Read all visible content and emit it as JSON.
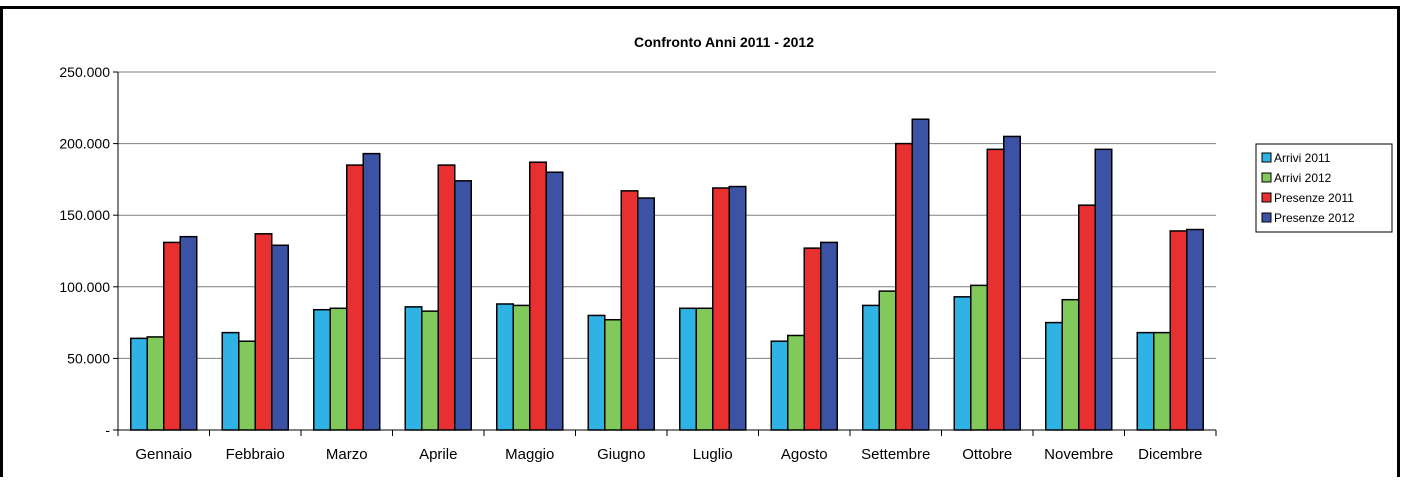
{
  "chart_data": {
    "type": "bar",
    "title": "Confronto Anni 2011 - 2012",
    "xlabel": "",
    "ylabel": "",
    "ylim": [
      0,
      250000
    ],
    "yticks": [
      0,
      50000,
      100000,
      150000,
      200000,
      250000
    ],
    "ytick_labels": [
      "-",
      "50.000",
      "100.000",
      "150.000",
      "200.000",
      "250.000"
    ],
    "grid": true,
    "legend_position": "right",
    "categories": [
      "Gennaio",
      "Febbraio",
      "Marzo",
      "Aprile",
      "Maggio",
      "Giugno",
      "Luglio",
      "Agosto",
      "Settembre",
      "Ottobre",
      "Novembre",
      "Dicembre"
    ],
    "series": [
      {
        "name": "Arrivi 2011",
        "color": "#2fb2e4",
        "values": [
          64000,
          68000,
          84000,
          86000,
          88000,
          80000,
          85000,
          62000,
          87000,
          93000,
          75000,
          68000
        ]
      },
      {
        "name": "Arrivi 2012",
        "color": "#82c95b",
        "values": [
          65000,
          62000,
          85000,
          83000,
          87000,
          77000,
          85000,
          66000,
          97000,
          101000,
          91000,
          68000
        ]
      },
      {
        "name": "Presenze 2011",
        "color": "#e83030",
        "values": [
          131000,
          137000,
          185000,
          185000,
          187000,
          167000,
          169000,
          127000,
          200000,
          196000,
          157000,
          139000
        ]
      },
      {
        "name": "Presenze 2012",
        "color": "#3c53a5",
        "values": [
          135000,
          129000,
          193000,
          174000,
          180000,
          162000,
          170000,
          131000,
          217000,
          205000,
          196000,
          140000
        ]
      }
    ]
  }
}
